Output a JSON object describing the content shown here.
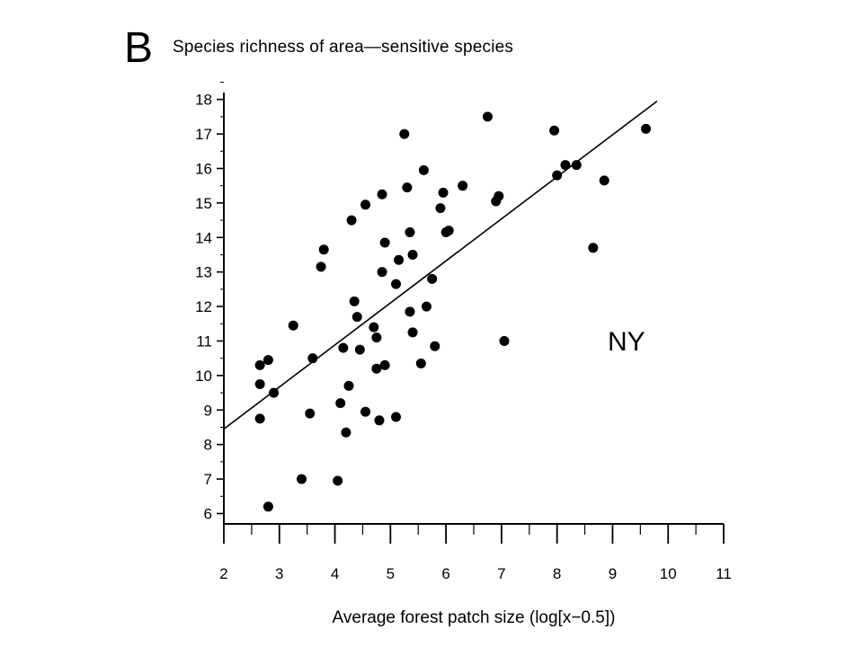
{
  "panel_label": "B",
  "chart_data": {
    "type": "scatter",
    "title": "Species richness of area—sensitive species",
    "xlabel": "Average forest patch size (log[x−0.5])",
    "ylabel": "",
    "xlim": [
      2,
      11
    ],
    "ylim": [
      5.7,
      18.2
    ],
    "x_ticks": [
      2,
      3,
      4,
      5,
      6,
      7,
      8,
      9,
      10,
      11
    ],
    "x_tick_labels": [
      "2",
      "3",
      "4",
      "5",
      "6",
      "7",
      "8",
      "9",
      "10",
      "11"
    ],
    "y_ticks": [
      6,
      7,
      8,
      9,
      10,
      11,
      12,
      13,
      14,
      15,
      16,
      17,
      18
    ],
    "y_tick_labels": [
      "6",
      "7",
      "8",
      "9",
      "10",
      "11",
      "12",
      "13",
      "14",
      "15",
      "16",
      "17",
      "18"
    ],
    "x_minor_step": 0.5,
    "grid": false,
    "annotation": "NY",
    "marker_color": "#000000",
    "points": [
      {
        "x": 2.65,
        "y": 10.3
      },
      {
        "x": 2.65,
        "y": 9.75
      },
      {
        "x": 2.65,
        "y": 8.75
      },
      {
        "x": 2.8,
        "y": 10.45
      },
      {
        "x": 2.9,
        "y": 9.5
      },
      {
        "x": 2.8,
        "y": 6.2
      },
      {
        "x": 3.25,
        "y": 11.45
      },
      {
        "x": 3.4,
        "y": 7.0
      },
      {
        "x": 3.55,
        "y": 8.9
      },
      {
        "x": 3.6,
        "y": 10.5
      },
      {
        "x": 3.75,
        "y": 13.15
      },
      {
        "x": 3.8,
        "y": 13.65
      },
      {
        "x": 4.05,
        "y": 6.95
      },
      {
        "x": 4.1,
        "y": 9.2
      },
      {
        "x": 4.15,
        "y": 10.8
      },
      {
        "x": 4.2,
        "y": 8.35
      },
      {
        "x": 4.25,
        "y": 9.7
      },
      {
        "x": 4.3,
        "y": 14.5
      },
      {
        "x": 4.35,
        "y": 12.15
      },
      {
        "x": 4.4,
        "y": 11.7
      },
      {
        "x": 4.45,
        "y": 10.75
      },
      {
        "x": 4.55,
        "y": 14.95
      },
      {
        "x": 4.55,
        "y": 8.95
      },
      {
        "x": 4.7,
        "y": 11.4
      },
      {
        "x": 4.75,
        "y": 11.1
      },
      {
        "x": 4.75,
        "y": 10.2
      },
      {
        "x": 4.8,
        "y": 8.7
      },
      {
        "x": 4.85,
        "y": 13.0
      },
      {
        "x": 4.85,
        "y": 15.25
      },
      {
        "x": 4.9,
        "y": 13.85
      },
      {
        "x": 4.9,
        "y": 10.3
      },
      {
        "x": 5.1,
        "y": 12.65
      },
      {
        "x": 5.1,
        "y": 8.8
      },
      {
        "x": 5.15,
        "y": 13.35
      },
      {
        "x": 5.25,
        "y": 17.0
      },
      {
        "x": 5.3,
        "y": 15.45
      },
      {
        "x": 5.35,
        "y": 14.15
      },
      {
        "x": 5.35,
        "y": 11.85
      },
      {
        "x": 5.4,
        "y": 13.5
      },
      {
        "x": 5.4,
        "y": 11.25
      },
      {
        "x": 5.55,
        "y": 10.35
      },
      {
        "x": 5.6,
        "y": 15.95
      },
      {
        "x": 5.65,
        "y": 12.0
      },
      {
        "x": 5.75,
        "y": 12.8
      },
      {
        "x": 5.8,
        "y": 10.85
      },
      {
        "x": 5.9,
        "y": 14.85
      },
      {
        "x": 5.95,
        "y": 15.3
      },
      {
        "x": 6.0,
        "y": 14.15
      },
      {
        "x": 6.05,
        "y": 14.2
      },
      {
        "x": 6.3,
        "y": 15.5
      },
      {
        "x": 6.75,
        "y": 17.5
      },
      {
        "x": 6.9,
        "y": 15.05
      },
      {
        "x": 6.95,
        "y": 15.2
      },
      {
        "x": 7.05,
        "y": 11.0
      },
      {
        "x": 7.95,
        "y": 17.1
      },
      {
        "x": 8.0,
        "y": 15.8
      },
      {
        "x": 8.15,
        "y": 16.1
      },
      {
        "x": 8.35,
        "y": 16.1
      },
      {
        "x": 8.65,
        "y": 13.7
      },
      {
        "x": 8.85,
        "y": 15.65
      },
      {
        "x": 9.6,
        "y": 17.15
      }
    ],
    "regression_line": {
      "x": [
        2,
        9.8
      ],
      "y": [
        8.45,
        17.95
      ]
    }
  }
}
